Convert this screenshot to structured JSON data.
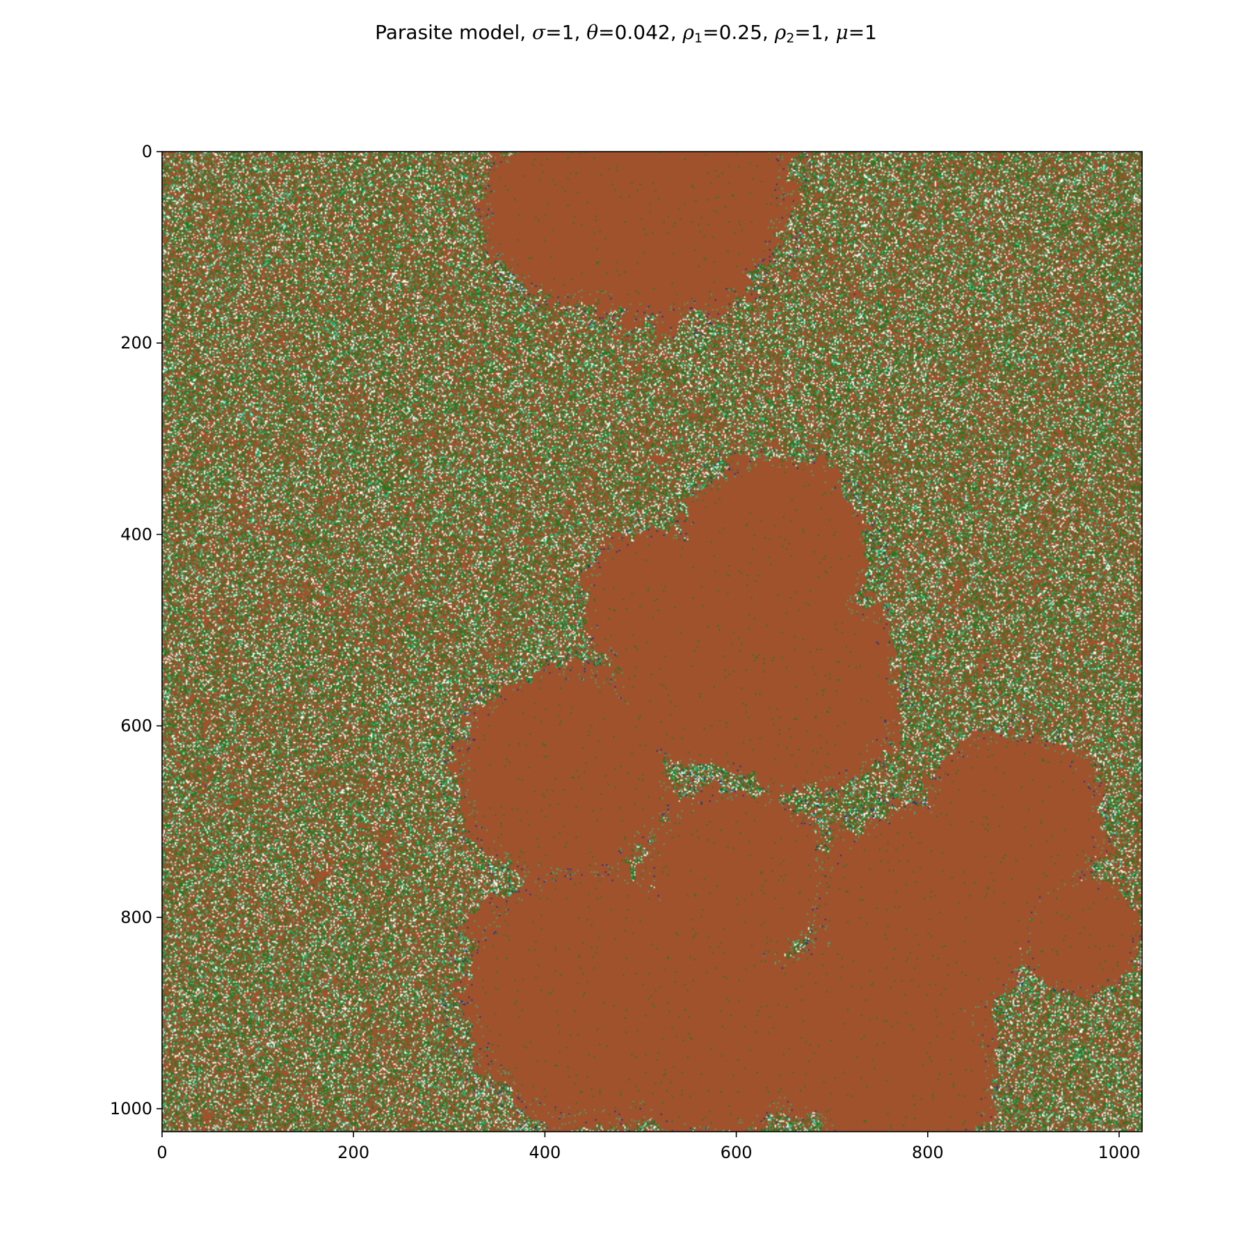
{
  "title": {
    "model": "Parasite model, ",
    "params": [
      {
        "sym": "σ",
        "sub": "",
        "value": "=1"
      },
      {
        "sym": "θ",
        "sub": "",
        "value": "=0.042"
      },
      {
        "sym": "ρ",
        "sub": "1",
        "value": "=0.25"
      },
      {
        "sym": "ρ",
        "sub": "2",
        "value": "=1"
      },
      {
        "sym": "μ",
        "sub": "",
        "value": "=1"
      }
    ],
    "separator": ", "
  },
  "chart_data": {
    "type": "heatmap",
    "grid_size": [
      1024,
      1024
    ],
    "xlim": [
      0,
      1024
    ],
    "ylim": [
      1024,
      0
    ],
    "y_axis_inverted": true,
    "x_ticks": [
      0,
      200,
      400,
      600,
      800,
      1000
    ],
    "x_tick_labels": [
      "0",
      "200",
      "400",
      "600",
      "800",
      "1000"
    ],
    "y_ticks": [
      0,
      200,
      400,
      600,
      800,
      1000
    ],
    "y_tick_labels": [
      "0",
      "200",
      "400",
      "600",
      "800",
      "1000"
    ],
    "grid": false,
    "colors": {
      "background": "#a0522d",
      "green_dark": "#1f7a1f",
      "green_light": "#3cb371",
      "white": "#ffffff",
      "blue": "#0b2aa8",
      "teal": "#40e0d0"
    },
    "brown_regions": [
      {
        "center": [
          520,
          40
        ],
        "radius": 160
      },
      {
        "center": [
          430,
          60
        ],
        "radius": 110
      },
      {
        "center": [
          640,
          420
        ],
        "radius": 120
      },
      {
        "center": [
          520,
          470
        ],
        "radius": 90
      },
      {
        "center": [
          660,
          560
        ],
        "radius": 130
      },
      {
        "center": [
          560,
          560
        ],
        "radius": 100
      },
      {
        "center": [
          420,
          650
        ],
        "radius": 130
      },
      {
        "center": [
          600,
          760
        ],
        "radius": 110
      },
      {
        "center": [
          450,
          880
        ],
        "radius": 160
      },
      {
        "center": [
          570,
          920
        ],
        "radius": 130
      },
      {
        "center": [
          800,
          800
        ],
        "radius": 140
      },
      {
        "center": [
          890,
          700
        ],
        "radius": 110
      },
      {
        "center": [
          700,
          920
        ],
        "radius": 110
      },
      {
        "center": [
          770,
          960
        ],
        "radius": 120
      },
      {
        "center": [
          960,
          820
        ],
        "radius": 70
      }
    ]
  }
}
